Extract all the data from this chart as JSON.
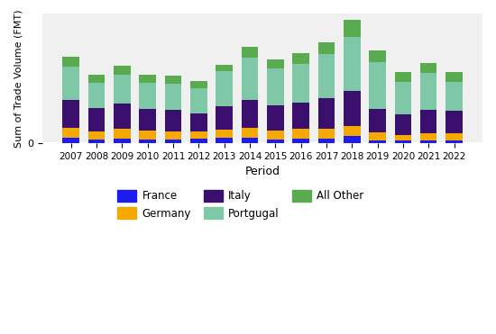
{
  "years": [
    2007,
    2008,
    2009,
    2010,
    2011,
    2012,
    2013,
    2014,
    2015,
    2016,
    2017,
    2018,
    2019,
    2020,
    2021,
    2022
  ],
  "France": [
    12,
    8,
    10,
    8,
    8,
    10,
    12,
    12,
    8,
    10,
    10,
    15,
    5,
    5,
    5,
    5
  ],
  "Germany": [
    20,
    16,
    20,
    18,
    16,
    14,
    16,
    20,
    18,
    20,
    20,
    22,
    18,
    12,
    16,
    16
  ],
  "Italy": [
    60,
    50,
    55,
    46,
    46,
    40,
    50,
    60,
    55,
    56,
    65,
    75,
    50,
    44,
    50,
    48
  ],
  "Portugal": [
    70,
    55,
    60,
    56,
    56,
    52,
    75,
    90,
    78,
    82,
    95,
    115,
    100,
    70,
    78,
    62
  ],
  "All Other": [
    22,
    16,
    20,
    18,
    18,
    16,
    14,
    24,
    20,
    24,
    24,
    36,
    24,
    20,
    22,
    20
  ],
  "colors": {
    "France": "#1c1cee",
    "Germany": "#f5a800",
    "Italy": "#3b0f6e",
    "Portugal": "#7ec8a8",
    "All Other": "#5aaa50"
  },
  "ylabel": "Sum of Trade Volume (FMT)",
  "xlabel": "Period",
  "background_color": "#f0f0f0",
  "grid_color": "#ffffff"
}
